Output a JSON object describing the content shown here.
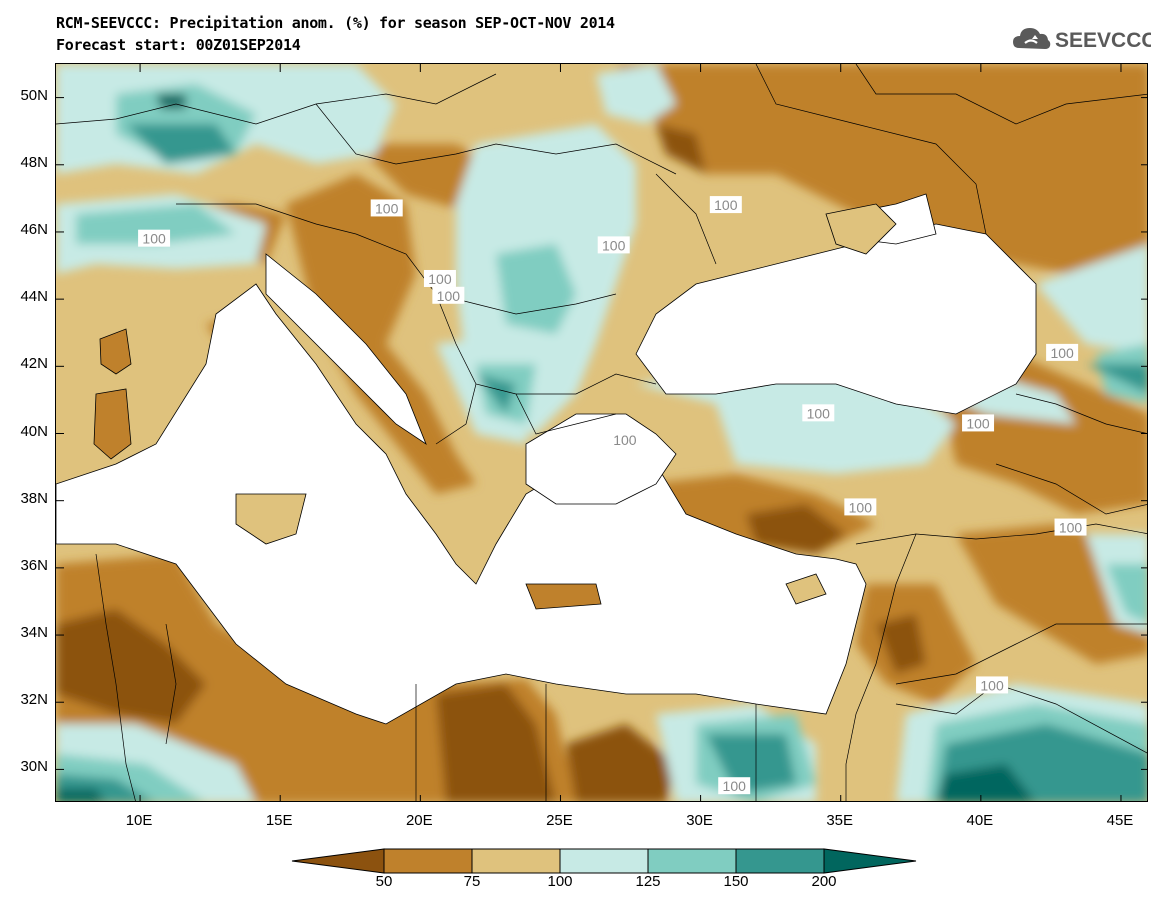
{
  "header": {
    "title": "RCM-SEEVCCC: Precipitation anom. (%) for season SEP-OCT-NOV 2014",
    "subtitle": "Forecast start: 00Z01SEP2014",
    "logo_text": "SEEVCCC",
    "logo_icon": "cloud-icon"
  },
  "map": {
    "variable": "Precipitation anomaly",
    "units": "%",
    "lon_range": [
      7,
      46
    ],
    "lat_range": [
      29,
      51
    ],
    "lat_ticks": [
      "50N",
      "48N",
      "46N",
      "44N",
      "42N",
      "40N",
      "38N",
      "36N",
      "34N",
      "32N",
      "30N"
    ],
    "lat_values": [
      50,
      48,
      46,
      44,
      42,
      40,
      38,
      36,
      34,
      32,
      30
    ],
    "lon_ticks": [
      "10E",
      "15E",
      "20E",
      "25E",
      "30E",
      "35E",
      "40E",
      "45E"
    ],
    "lon_values": [
      10,
      15,
      20,
      25,
      30,
      35,
      40,
      45
    ],
    "contour_label": "100",
    "contour_labels": [
      {
        "text": "100",
        "lon": 18.8,
        "lat": 46.7
      },
      {
        "text": "100",
        "lon": 10.5,
        "lat": 45.8
      },
      {
        "text": "100",
        "lon": 20.7,
        "lat": 44.6
      },
      {
        "text": "100",
        "lon": 21.0,
        "lat": 44.1
      },
      {
        "text": "100",
        "lon": 26.9,
        "lat": 45.6
      },
      {
        "text": "100",
        "lon": 30.9,
        "lat": 46.8
      },
      {
        "text": "100",
        "lon": 34.2,
        "lat": 40.6
      },
      {
        "text": "100",
        "lon": 27.3,
        "lat": 39.8
      },
      {
        "text": "100",
        "lon": 39.9,
        "lat": 40.3
      },
      {
        "text": "100",
        "lon": 42.9,
        "lat": 42.4
      },
      {
        "text": "100",
        "lon": 35.7,
        "lat": 37.8
      },
      {
        "text": "100",
        "lon": 43.2,
        "lat": 37.2
      },
      {
        "text": "100",
        "lon": 40.4,
        "lat": 32.5
      },
      {
        "text": "100",
        "lon": 31.2,
        "lat": 29.5
      }
    ]
  },
  "legend": {
    "levels": [
      "50",
      "75",
      "100",
      "125",
      "150",
      "200"
    ],
    "colors": [
      "#8c520f",
      "#bf812c",
      "#dfc27d",
      "#c7eae5",
      "#80cdc1",
      "#35978f",
      "#01665e"
    ]
  }
}
